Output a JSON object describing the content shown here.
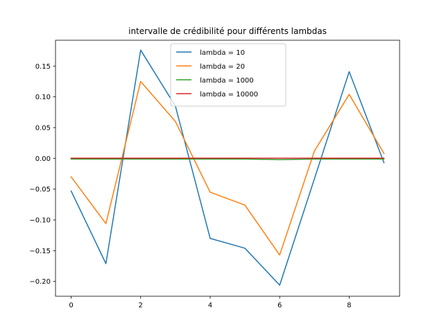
{
  "chart_data": {
    "type": "line",
    "title": "intervalle de crédibilité pour différents lambdas",
    "xlabel": "",
    "ylabel": "",
    "x": [
      0,
      1,
      2,
      3,
      4,
      5,
      6,
      7,
      8,
      9
    ],
    "xlim": [
      -0.45,
      9.45
    ],
    "ylim": [
      -0.224,
      0.192
    ],
    "xticks": [
      0,
      2,
      4,
      6,
      8
    ],
    "xtick_labels": [
      "0",
      "2",
      "4",
      "6",
      "8"
    ],
    "yticks": [
      -0.2,
      -0.15,
      -0.1,
      -0.05,
      0.0,
      0.05,
      0.1,
      0.15
    ],
    "ytick_labels": [
      "−0.20",
      "−0.15",
      "−0.10",
      "−0.05",
      "0.00",
      "0.05",
      "0.10",
      "0.15"
    ],
    "grid": false,
    "legend_position": "top-center",
    "series": [
      {
        "name": "lambda = 10",
        "color": "#1f77b4",
        "values": [
          -0.053,
          -0.171,
          0.176,
          0.085,
          -0.13,
          -0.146,
          -0.206,
          -0.033,
          0.141,
          -0.007
        ]
      },
      {
        "name": "lambda = 20",
        "color": "#ff7f0e",
        "values": [
          -0.03,
          -0.106,
          0.125,
          0.06,
          -0.055,
          -0.076,
          -0.157,
          0.012,
          0.104,
          0.008
        ]
      },
      {
        "name": "lambda = 1000",
        "color": "#2ca02c",
        "values": [
          -0.001,
          -0.001,
          -0.001,
          -0.001,
          -0.001,
          -0.001,
          -0.002,
          -0.001,
          -0.001,
          -0.001
        ]
      },
      {
        "name": "lambda = 10000",
        "color": "#d62728",
        "values": [
          0.0003,
          0.0003,
          0.0003,
          0.0003,
          0.0003,
          0.0003,
          0.0003,
          0.0003,
          0.0003,
          0.0003
        ]
      }
    ]
  }
}
